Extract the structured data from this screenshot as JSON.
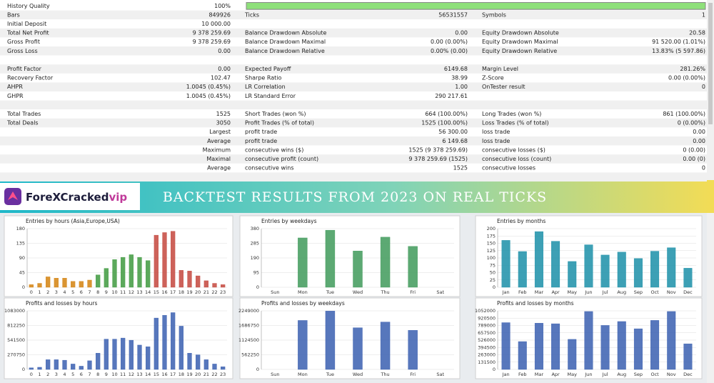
{
  "report": {
    "history_quality": {
      "label": "History Quality",
      "value": 100,
      "value_label": "100%"
    },
    "sections": [
      [
        [
          {
            "label": "Bars",
            "value": "849926"
          },
          {
            "label": "Ticks",
            "value": "56531557"
          },
          {
            "label": "Symbols",
            "value": "1"
          }
        ],
        [
          {
            "label": "Initial Deposit",
            "value": "10 000.00"
          }
        ],
        [
          {
            "label": "Total Net Profit",
            "value": "9 378 259.69"
          },
          {
            "label": "Balance Drawdown Absolute",
            "value": "0.00"
          },
          {
            "label": "Equity Drawdown Absolute",
            "value": "20.58"
          }
        ],
        [
          {
            "label": "Gross Profit",
            "value": "9 378 259.69"
          },
          {
            "label": "Balance Drawdown Maximal",
            "value": "0.00 (0.00%)"
          },
          {
            "label": "Equity Drawdown Maximal",
            "value": "91 520.00 (1.01%)"
          }
        ],
        [
          {
            "label": "Gross Loss",
            "value": "0.00"
          },
          {
            "label": "Balance Drawdown Relative",
            "value": "0.00% (0.00)"
          },
          {
            "label": "Equity Drawdown Relative",
            "value": "13.83% (5 597.86)"
          }
        ]
      ],
      [
        [
          {
            "label": "Profit Factor",
            "value": "0.00"
          },
          {
            "label": "Expected Payoff",
            "value": "6149.68"
          },
          {
            "label": "Margin Level",
            "value": "281.26%"
          }
        ],
        [
          {
            "label": "Recovery Factor",
            "value": "102.47"
          },
          {
            "label": "Sharpe Ratio",
            "value": "38.99"
          },
          {
            "label": "Z-Score",
            "value": "0.00 (0.00%)"
          }
        ],
        [
          {
            "label": "AHPR",
            "value": "1.0045 (0.45%)"
          },
          {
            "label": "LR Correlation",
            "value": "1.00"
          },
          {
            "label": "OnTester result",
            "value": "0"
          }
        ],
        [
          {
            "label": "GHPR",
            "value": "1.0045 (0.45%)"
          },
          {
            "label": "LR Standard Error",
            "value": "290 217.61"
          }
        ]
      ],
      [
        [
          {
            "label": "Total Trades",
            "value": "1525"
          },
          {
            "label": "Short Trades (won %)",
            "value": "664 (100.00%)"
          },
          {
            "label": "Long Trades (won %)",
            "value": "861 (100.00%)"
          }
        ],
        [
          {
            "label": "Total Deals",
            "value": "3050"
          },
          {
            "label": "Profit Trades (% of total)",
            "value": "1525 (100.00%)"
          },
          {
            "label": "Loss Trades (% of total)",
            "value": "0 (0.00%)"
          }
        ],
        [
          {
            "value": "Largest"
          },
          {
            "label": "profit trade",
            "value": "56 300.00"
          },
          {
            "label": "loss trade",
            "value": "0.00"
          }
        ],
        [
          {
            "value": "Average"
          },
          {
            "label": "profit trade",
            "value": "6 149.68"
          },
          {
            "label": "loss trade",
            "value": "0.00"
          }
        ],
        [
          {
            "value": "Maximum"
          },
          {
            "label": "consecutive wins ($)",
            "value": "1525 (9 378 259.69)"
          },
          {
            "label": "consecutive losses ($)",
            "value": "0 (0.00)"
          }
        ],
        [
          {
            "value": "Maximal"
          },
          {
            "label": "consecutive profit (count)",
            "value": "9 378 259.69 (1525)"
          },
          {
            "label": "consecutive loss (count)",
            "value": "0.00 (0)"
          }
        ],
        [
          {
            "value": "Average"
          },
          {
            "label": "consecutive wins",
            "value": "1525"
          },
          {
            "label": "consecutive losses",
            "value": "0"
          }
        ]
      ]
    ]
  },
  "banner": {
    "brand_main": "ForeXCracked",
    "brand_suffix": "vip",
    "title": "BACKTEST RESULTS FROM 2023 ON REAL TICKS"
  },
  "charts": [
    {
      "type": "bar",
      "title": "Entries by hours (Asia,Europe,USA)",
      "categories": [
        "0",
        "1",
        "2",
        "3",
        "4",
        "5",
        "6",
        "7",
        "8",
        "9",
        "10",
        "11",
        "12",
        "13",
        "14",
        "15",
        "16",
        "17",
        "18",
        "19",
        "20",
        "21",
        "22",
        "23"
      ],
      "values": [
        8,
        12,
        32,
        28,
        28,
        18,
        18,
        22,
        38,
        58,
        85,
        92,
        100,
        92,
        82,
        160,
        168,
        172,
        52,
        50,
        35,
        20,
        12,
        8
      ],
      "colors": [
        "#d4820f",
        "#d4820f",
        "#d4820f",
        "#d4820f",
        "#d4820f",
        "#d4820f",
        "#d4820f",
        "#d4820f",
        "#3f9a3f",
        "#3f9a3f",
        "#3f9a3f",
        "#3f9a3f",
        "#3f9a3f",
        "#3f9a3f",
        "#3f9a3f",
        "#c4463d",
        "#c4463d",
        "#c4463d",
        "#c4463d",
        "#c4463d",
        "#c4463d",
        "#c4463d",
        "#c4463d",
        "#c4463d"
      ],
      "ylim": [
        0,
        180
      ],
      "yticks": [
        0,
        45,
        90,
        135,
        180
      ]
    },
    {
      "type": "bar",
      "title": "Entries by weekdays",
      "categories": [
        "Sun",
        "Mon",
        "Tue",
        "Wed",
        "Thu",
        "Fri",
        "Sat"
      ],
      "values": [
        0,
        320,
        370,
        235,
        325,
        265,
        0
      ],
      "color": "#3f9a5a",
      "ylim": [
        0,
        380
      ],
      "yticks": [
        0,
        95,
        190,
        285,
        380
      ]
    },
    {
      "type": "bar",
      "title": "Entries by months",
      "categories": [
        "Jan",
        "Feb",
        "Mar",
        "Apr",
        "May",
        "Jun",
        "Jul",
        "Aug",
        "Sep",
        "Oct",
        "Nov",
        "Dec"
      ],
      "values": [
        160,
        122,
        190,
        157,
        88,
        145,
        110,
        120,
        98,
        123,
        135,
        65
      ],
      "color": "#1b8fa8",
      "ylim": [
        0,
        200
      ],
      "yticks": [
        0,
        25,
        50,
        75,
        100,
        125,
        150,
        175,
        200
      ]
    },
    {
      "type": "bar",
      "title": "Profits and losses by hours",
      "categories": [
        "0",
        "1",
        "2",
        "3",
        "4",
        "5",
        "6",
        "7",
        "8",
        "9",
        "10",
        "11",
        "12",
        "13",
        "14",
        "15",
        "16",
        "17",
        "18",
        "19",
        "20",
        "21",
        "22",
        "23"
      ],
      "values": [
        30000,
        40000,
        180000,
        180000,
        170000,
        100000,
        60000,
        160000,
        300000,
        560000,
        560000,
        580000,
        540000,
        450000,
        420000,
        950000,
        1000000,
        1050000,
        800000,
        300000,
        270000,
        180000,
        100000,
        50000
      ],
      "color": "#3a5fb0",
      "ylim": [
        0,
        1083000
      ],
      "yticks": [
        0,
        270750,
        541500,
        812250,
        1083000
      ]
    },
    {
      "type": "bar",
      "title": "Profits and losses by weekdays",
      "categories": [
        "Sun",
        "Mon",
        "Tue",
        "Wed",
        "Thu",
        "Fri",
        "Sat"
      ],
      "values": [
        0,
        1880000,
        2240000,
        1600000,
        1820000,
        1500000,
        0
      ],
      "color": "#3a5fb0",
      "ylim": [
        0,
        2249000
      ],
      "yticks": [
        0,
        562250,
        1124500,
        1686750,
        2249000
      ]
    },
    {
      "type": "bar",
      "title": "Profits and losses by months",
      "categories": [
        "Jan",
        "Feb",
        "Mar",
        "Apr",
        "May",
        "Jun",
        "Jul",
        "Aug",
        "Sep",
        "Oct",
        "Nov",
        "Dec"
      ],
      "values": [
        840000,
        500000,
        830000,
        820000,
        540000,
        1040000,
        790000,
        860000,
        730000,
        880000,
        1040000,
        460000
      ],
      "color": "#3a5fb0",
      "ylim": [
        0,
        1052000
      ],
      "yticks": [
        0,
        131500,
        263000,
        394500,
        526000,
        657500,
        789000,
        920500,
        1052000
      ]
    }
  ]
}
